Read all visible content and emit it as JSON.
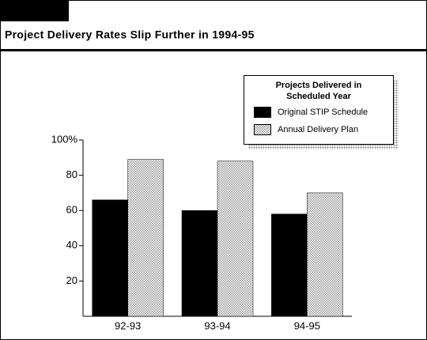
{
  "chart_data": {
    "type": "bar",
    "title": "Project Delivery Rates Slip Further in 1994-95",
    "legend_title": "Projects Delivered in Scheduled Year",
    "legend_position": "upper right",
    "categories": [
      "92-93",
      "93-94",
      "94-95"
    ],
    "series": [
      {
        "name": "Original STIP Schedule",
        "color": "#000000",
        "values": [
          66,
          60,
          58
        ]
      },
      {
        "name": "Annual Delivery Plan",
        "color": "#9a9a9a",
        "pattern": "dotted",
        "values": [
          89,
          88,
          70
        ]
      }
    ],
    "ylim": [
      0,
      100
    ],
    "yticks": [
      20,
      40,
      60,
      80,
      {
        "value": 100,
        "label": "100%"
      }
    ],
    "grid": false
  }
}
